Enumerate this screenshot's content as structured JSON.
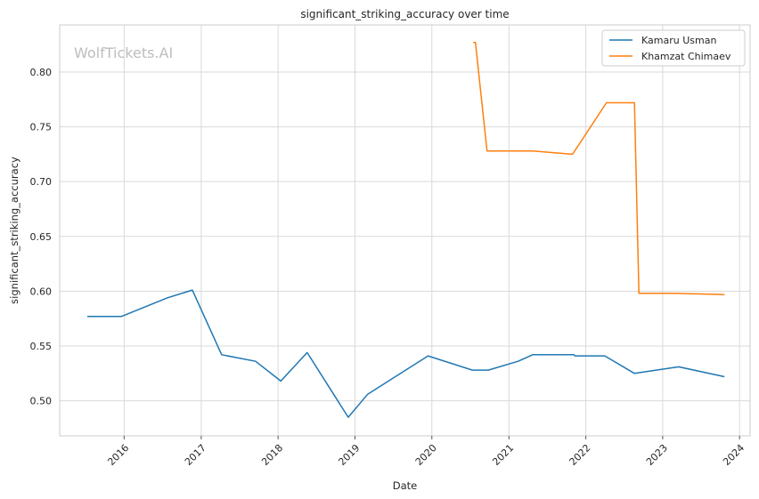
{
  "chart_data": {
    "type": "line",
    "title": "significant_striking_accuracy over time",
    "xlabel": "Date",
    "ylabel": "significant_striking_accuracy",
    "watermark": "WolfTickets.AI",
    "grid": true,
    "legend_position": "top-right",
    "xlim": [
      "2015-03-01",
      "2024-02-20"
    ],
    "ylim": [
      0.468,
      0.843
    ],
    "x_ticks": [
      "2016",
      "2017",
      "2018",
      "2019",
      "2020",
      "2021",
      "2022",
      "2023",
      "2024"
    ],
    "y_ticks": [
      "0.50",
      "0.55",
      "0.60",
      "0.65",
      "0.70",
      "0.75",
      "0.80"
    ],
    "series": [
      {
        "name": "Kamaru Usman",
        "color": "#1f77b4",
        "points": [
          [
            "2015-07-10",
            0.577
          ],
          [
            "2015-12-20",
            0.577
          ],
          [
            "2016-07-25",
            0.594
          ],
          [
            "2016-11-20",
            0.601
          ],
          [
            "2017-04-08",
            0.542
          ],
          [
            "2017-09-16",
            0.536
          ],
          [
            "2018-01-14",
            0.518
          ],
          [
            "2018-05-19",
            0.544
          ],
          [
            "2018-11-30",
            0.485
          ],
          [
            "2019-03-02",
            0.506
          ],
          [
            "2019-12-14",
            0.541
          ],
          [
            "2020-07-11",
            0.528
          ],
          [
            "2020-09-25",
            0.528
          ],
          [
            "2021-02-13",
            0.536
          ],
          [
            "2021-04-24",
            0.542
          ],
          [
            "2021-11-06",
            0.542
          ],
          [
            "2021-11-10",
            0.541
          ],
          [
            "2022-04-01",
            0.541
          ],
          [
            "2022-08-20",
            0.525
          ],
          [
            "2023-03-18",
            0.531
          ],
          [
            "2023-10-21",
            0.522
          ]
        ]
      },
      {
        "name": "Khamzat Chimaev",
        "color": "#ff7f0e",
        "points": [
          [
            "2020-07-15",
            0.827
          ],
          [
            "2020-07-26",
            0.827
          ],
          [
            "2020-09-19",
            0.728
          ],
          [
            "2021-04-26",
            0.728
          ],
          [
            "2021-10-30",
            0.725
          ],
          [
            "2022-04-09",
            0.772
          ],
          [
            "2022-08-20",
            0.772
          ],
          [
            "2022-09-10",
            0.598
          ],
          [
            "2023-03-10",
            0.598
          ],
          [
            "2023-10-21",
            0.597
          ]
        ]
      }
    ]
  }
}
